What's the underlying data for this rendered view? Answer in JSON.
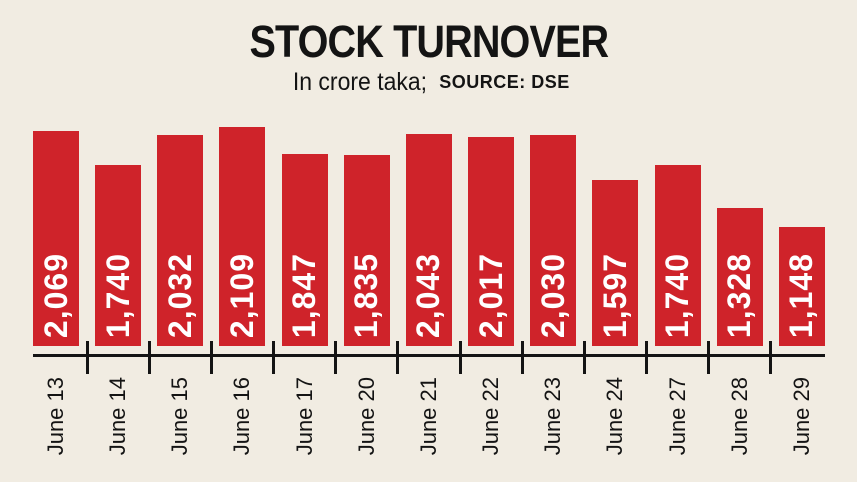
{
  "header": {
    "title": "STOCK TURNOVER",
    "subtitle_unit": "In crore taka;",
    "subtitle_source": "SOURCE: DSE"
  },
  "colors": {
    "background": "#f1ece2",
    "bar": "#cf232a",
    "text": "#141414",
    "bar_label": "#ffffff",
    "axis": "#141414"
  },
  "chart_data": {
    "type": "bar",
    "title": "STOCK TURNOVER",
    "subtitle": "In crore taka; SOURCE: DSE",
    "unit": "crore taka",
    "source": "DSE",
    "categories": [
      "June 13",
      "June 14",
      "June 15",
      "June 16",
      "June 17",
      "June 20",
      "June 21",
      "June 22",
      "June 23",
      "June 24",
      "June 27",
      "June 28",
      "June 29"
    ],
    "values": [
      2069,
      1740,
      2032,
      2109,
      1847,
      1835,
      2043,
      2017,
      2030,
      1597,
      1740,
      1328,
      1148
    ],
    "value_labels": [
      "2,069",
      "1,740",
      "2,032",
      "2,109",
      "1,847",
      "1,835",
      "2,043",
      "2,017",
      "2,030",
      "1,597",
      "1,740",
      "1,328",
      "1,148"
    ],
    "xlabel": "",
    "ylabel": "",
    "ylim": [
      0,
      2109
    ],
    "grid": false,
    "legend": false,
    "value_label_position": "inside-bottom-rotated",
    "x_tick_style": "ticks-between-bars",
    "orientation": "vertical"
  }
}
